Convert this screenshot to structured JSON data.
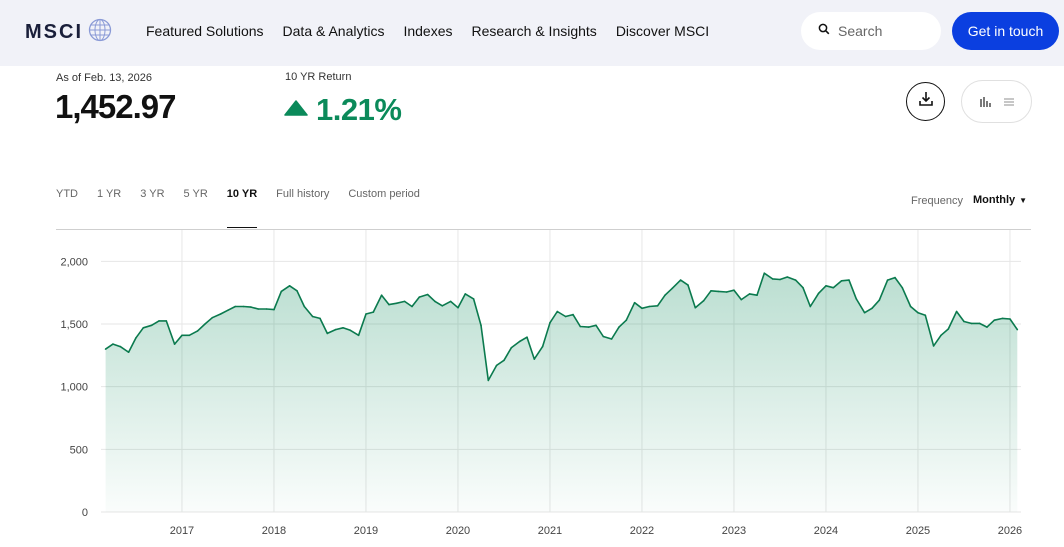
{
  "header": {
    "logo_text": "MSCI",
    "nav": [
      "Featured Solutions",
      "Data & Analytics",
      "Indexes",
      "Research & Insights",
      "Discover MSCI"
    ],
    "search_placeholder": "Search",
    "cta_label": "Get in touch"
  },
  "summary": {
    "as_of": "As of Feb. 13, 2026",
    "value": "1,452.97",
    "return_label": "10 YR Return",
    "return_value": "1.21%",
    "return_direction": "up",
    "up_color": "#0b8a5a"
  },
  "toolbar": {
    "download_icon": "download-icon",
    "chart_view_icon": "bar-chart-icon",
    "table_view_icon": "list-icon"
  },
  "periods": [
    "YTD",
    "1 YR",
    "3 YR",
    "5 YR",
    "10 YR",
    "Full history",
    "Custom period"
  ],
  "active_period": "10 YR",
  "frequency": {
    "label": "Frequency",
    "value": "Monthly"
  },
  "chart_data": {
    "type": "area",
    "line_color": "#0b7a4e",
    "fill_color": "#0b8a5a",
    "x_tick_labels": [
      "2017",
      "2018",
      "2019",
      "2020",
      "2021",
      "2022",
      "2023",
      "2024",
      "2025",
      "2026"
    ],
    "y_ticks": [
      0,
      500,
      1000,
      1500,
      2000
    ],
    "y_tick_labels": [
      "0",
      "500",
      "1,000",
      "1,500",
      "2,000"
    ],
    "ylim": [
      0,
      2250
    ],
    "xlim": [
      2016.12,
      2026.12
    ],
    "grid": true,
    "series": [
      {
        "x": [
          2016.17,
          2016.25,
          2016.33,
          2016.42,
          2016.5,
          2016.58,
          2016.67,
          2016.75,
          2016.83,
          2016.92,
          2017.0,
          2017.08,
          2017.17,
          2017.25,
          2017.33,
          2017.42,
          2017.5,
          2017.58,
          2017.67,
          2017.75,
          2017.83,
          2017.92,
          2018.0,
          2018.08,
          2018.17,
          2018.25,
          2018.33,
          2018.42,
          2018.5,
          2018.58,
          2018.67,
          2018.75,
          2018.83,
          2018.92,
          2019.0,
          2019.08,
          2019.17,
          2019.25,
          2019.33,
          2019.42,
          2019.5,
          2019.58,
          2019.67,
          2019.75,
          2019.83,
          2019.92,
          2020.0,
          2020.08,
          2020.17,
          2020.25,
          2020.33,
          2020.42,
          2020.5,
          2020.58,
          2020.67,
          2020.75,
          2020.83,
          2020.92,
          2021.0,
          2021.08,
          2021.17,
          2021.25,
          2021.33,
          2021.42,
          2021.5,
          2021.58,
          2021.67,
          2021.75,
          2021.83,
          2021.92,
          2022.0,
          2022.08,
          2022.17,
          2022.25,
          2022.33,
          2022.42,
          2022.5,
          2022.58,
          2022.67,
          2022.75,
          2022.83,
          2022.92,
          2023.0,
          2023.08,
          2023.17,
          2023.25,
          2023.33,
          2023.42,
          2023.5,
          2023.58,
          2023.67,
          2023.75,
          2023.83,
          2023.92,
          2024.0,
          2024.08,
          2024.17,
          2024.25,
          2024.33,
          2024.42,
          2024.5,
          2024.58,
          2024.67,
          2024.75,
          2024.83,
          2024.92,
          2025.0,
          2025.08,
          2025.17,
          2025.25,
          2025.33,
          2025.42,
          2025.5,
          2025.58,
          2025.67,
          2025.75,
          2025.83,
          2025.92,
          2026.0,
          2026.08
        ],
        "y": [
          1300,
          1340,
          1320,
          1275,
          1390,
          1470,
          1490,
          1525,
          1525,
          1340,
          1410,
          1410,
          1445,
          1500,
          1550,
          1580,
          1610,
          1640,
          1640,
          1635,
          1620,
          1620,
          1615,
          1760,
          1805,
          1765,
          1640,
          1560,
          1545,
          1425,
          1455,
          1470,
          1450,
          1410,
          1580,
          1595,
          1730,
          1655,
          1665,
          1680,
          1640,
          1715,
          1735,
          1680,
          1645,
          1680,
          1630,
          1740,
          1700,
          1490,
          1050,
          1170,
          1210,
          1310,
          1360,
          1395,
          1220,
          1320,
          1510,
          1600,
          1560,
          1575,
          1480,
          1475,
          1490,
          1400,
          1380,
          1475,
          1530,
          1670,
          1625,
          1640,
          1645,
          1730,
          1785,
          1850,
          1810,
          1630,
          1685,
          1765,
          1760,
          1755,
          1770,
          1695,
          1740,
          1730,
          1905,
          1860,
          1855,
          1875,
          1850,
          1790,
          1640,
          1745,
          1805,
          1790,
          1845,
          1850,
          1700,
          1590,
          1625,
          1690,
          1850,
          1870,
          1790,
          1640,
          1590,
          1570,
          1325,
          1410,
          1460,
          1600,
          1520,
          1505,
          1505,
          1475,
          1530,
          1545,
          1540,
          1455
        ]
      }
    ]
  }
}
